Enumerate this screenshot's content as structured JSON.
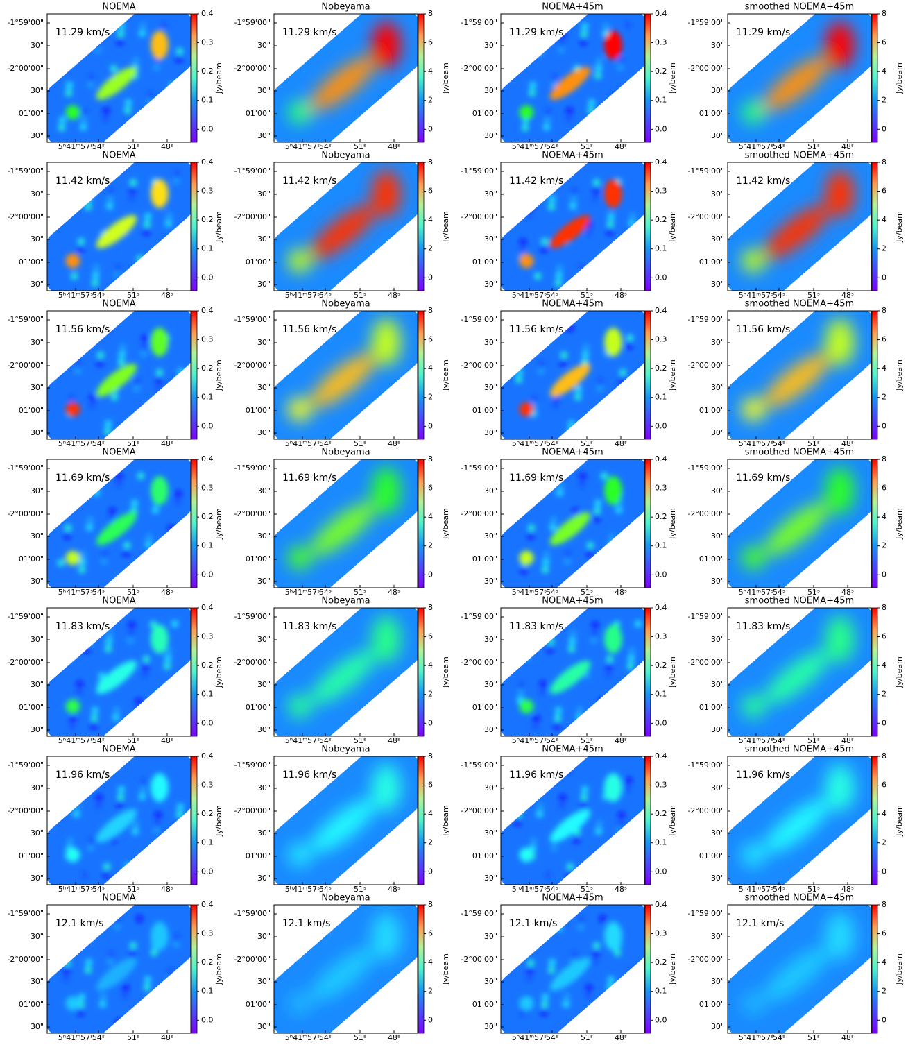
{
  "columns": [
    {
      "title": "NOEMA",
      "colorbar": {
        "label": "Jy/beam",
        "lim": [
          -0.045,
          0.4
        ],
        "ticks": [
          {
            "value": 0,
            "label": "0.0"
          },
          0.1,
          0.2,
          0.3,
          0.4
        ]
      }
    },
    {
      "title": "Nobeyama",
      "colorbar": {
        "label": "Jy/beam",
        "lim": [
          -0.9,
          8
        ],
        "ticks": [
          0,
          2,
          4,
          6,
          8
        ]
      }
    },
    {
      "title": "NOEMA+45m",
      "colorbar": {
        "label": "Jy/beam",
        "lim": [
          -0.045,
          0.4
        ],
        "ticks": [
          {
            "value": 0,
            "label": "0.0"
          },
          0.1,
          0.2,
          0.3,
          0.4
        ]
      }
    },
    {
      "title": "smoothed NOEMA+45m",
      "colorbar": {
        "label": "Jy/beam",
        "lim": [
          -0.9,
          8
        ],
        "ticks": [
          0,
          2,
          4,
          6,
          8
        ]
      }
    }
  ],
  "velocities": [
    "11.29 km/s",
    "11.42 km/s",
    "11.56 km/s",
    "11.69 km/s",
    "11.83 km/s",
    "11.96 km/s",
    "12.1 km/s"
  ],
  "y_ticks": [
    "-1°59'00\"",
    "30\"",
    "-2°00'00\"",
    "30\"",
    "01'00\"",
    "30\""
  ],
  "x_ticks": [
    "5ʰ41ᵐ57ˢ",
    "54ˢ",
    "51ˢ",
    "48ˢ"
  ]
}
